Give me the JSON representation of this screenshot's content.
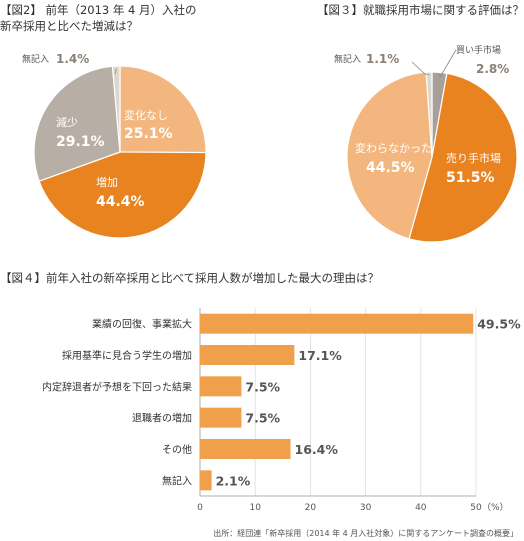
{
  "chart_data": [
    {
      "type": "pie",
      "title": "【図2】 前年（2013 年 4 月）入社の\n新卒採用と比べた増減は？",
      "slices": [
        {
          "label": "変化なし",
          "value": 25.1,
          "value_text": "25.1%",
          "color": "#f3b67e"
        },
        {
          "label": "増加",
          "value": 44.4,
          "value_text": "44.4%",
          "color": "#e8831f"
        },
        {
          "label": "減少",
          "value": 29.1,
          "value_text": "29.1%",
          "color": "#b7afa5"
        },
        {
          "label": "無記入",
          "value": 1.4,
          "value_text": "1.4%",
          "color": "#dcd6ce"
        }
      ]
    },
    {
      "type": "pie",
      "title": "【図３】就職採用市場に関する評価は？",
      "slices": [
        {
          "label": "買い手市場",
          "value": 2.8,
          "value_text": "2.8%",
          "color": "#a8a098"
        },
        {
          "label": "売り手市場",
          "value": 51.5,
          "value_text": "51.5%",
          "color": "#e8831f"
        },
        {
          "label": "変わらなかった",
          "value": 44.5,
          "value_text": "44.5%",
          "color": "#f3b67e"
        },
        {
          "label": "無記入",
          "value": 1.1,
          "value_text": "1.1%",
          "color": "#dcd6ce"
        }
      ]
    },
    {
      "type": "bar",
      "orientation": "horizontal",
      "title": "【図４】前年入社の新卒採用と比べて採用人数が増加した最大の理由は？",
      "categories": [
        "業績の回復、事業拡大",
        "採用基準に見合う学生の増加",
        "内定辞退者が予想を下回った結果",
        "退職者の増加",
        "その他",
        "無記入"
      ],
      "values": [
        49.5,
        17.1,
        7.5,
        7.5,
        16.4,
        2.1
      ],
      "value_labels": [
        "49.5%",
        "17.1%",
        "7.5%",
        "7.5%",
        "16.4%",
        "2.1%"
      ],
      "xlim": [
        0,
        50
      ],
      "xticks": [
        "0",
        "10",
        "20",
        "30",
        "40",
        "50"
      ],
      "xunit": "（%）",
      "bar_color": "#f0a04b",
      "grid": true
    }
  ],
  "source": "出所：経団連「新卒採用（2014 年 4 月入社対象）に関するアンケート調査の概要」",
  "colors": {
    "axis": "#999999",
    "grid": "#dddddd",
    "text": "#333333",
    "label_white": "#ffffff"
  }
}
